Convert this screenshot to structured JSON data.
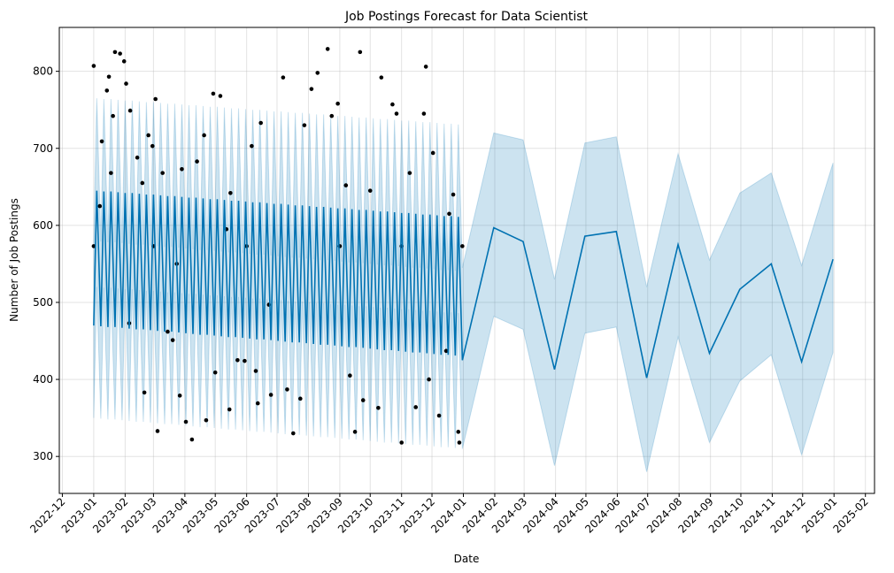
{
  "chart_data": {
    "type": "forecast",
    "title": "Job Postings Forecast for Data Scientist",
    "x_label": "Date",
    "y_label": "Number of Job Postings",
    "grid": true,
    "xlim": [
      "2022-11-28",
      "2025-02-10"
    ],
    "ylim": [
      252,
      857
    ],
    "yticks": [
      300,
      400,
      500,
      600,
      700,
      800
    ],
    "xticks": [
      {
        "value": "2022-12-01",
        "label": "2022-12"
      },
      {
        "value": "2023-01-01",
        "label": "2023-01"
      },
      {
        "value": "2023-02-01",
        "label": "2023-02"
      },
      {
        "value": "2023-03-01",
        "label": "2023-03"
      },
      {
        "value": "2023-04-01",
        "label": "2023-04"
      },
      {
        "value": "2023-05-01",
        "label": "2023-05"
      },
      {
        "value": "2023-06-01",
        "label": "2023-06"
      },
      {
        "value": "2023-07-01",
        "label": "2023-07"
      },
      {
        "value": "2023-08-01",
        "label": "2023-08"
      },
      {
        "value": "2023-09-01",
        "label": "2023-09"
      },
      {
        "value": "2023-10-01",
        "label": "2023-10"
      },
      {
        "value": "2023-11-01",
        "label": "2023-11"
      },
      {
        "value": "2023-12-01",
        "label": "2023-12"
      },
      {
        "value": "2024-01-01",
        "label": "2024-01"
      },
      {
        "value": "2024-02-01",
        "label": "2024-02"
      },
      {
        "value": "2024-03-01",
        "label": "2024-03"
      },
      {
        "value": "2024-04-01",
        "label": "2024-04"
      },
      {
        "value": "2024-05-01",
        "label": "2024-05"
      },
      {
        "value": "2024-06-01",
        "label": "2024-06"
      },
      {
        "value": "2024-07-01",
        "label": "2024-07"
      },
      {
        "value": "2024-08-01",
        "label": "2024-08"
      },
      {
        "value": "2024-09-01",
        "label": "2024-09"
      },
      {
        "value": "2024-10-01",
        "label": "2024-10"
      },
      {
        "value": "2024-11-01",
        "label": "2024-11"
      },
      {
        "value": "2024-12-01",
        "label": "2024-12"
      },
      {
        "value": "2025-01-01",
        "label": "2025-01"
      },
      {
        "value": "2025-02-01",
        "label": "2025-02"
      }
    ],
    "forecast": {
      "color": "#0072B2",
      "x": [
        "2023-01-01",
        "2023-01-04",
        "2023-01-08",
        "2023-01-11",
        "2023-01-15",
        "2023-01-18",
        "2023-01-22",
        "2023-01-25",
        "2023-01-29",
        "2023-02-01",
        "2023-02-05",
        "2023-02-08",
        "2023-02-12",
        "2023-02-15",
        "2023-02-19",
        "2023-02-22",
        "2023-02-26",
        "2023-03-01",
        "2023-03-05",
        "2023-03-08",
        "2023-03-12",
        "2023-03-15",
        "2023-03-19",
        "2023-03-22",
        "2023-03-26",
        "2023-03-29",
        "2023-04-02",
        "2023-04-05",
        "2023-04-09",
        "2023-04-12",
        "2023-04-16",
        "2023-04-19",
        "2023-04-23",
        "2023-04-26",
        "2023-04-30",
        "2023-05-03",
        "2023-05-07",
        "2023-05-10",
        "2023-05-14",
        "2023-05-17",
        "2023-05-21",
        "2023-05-24",
        "2023-05-28",
        "2023-05-31",
        "2023-06-04",
        "2023-06-07",
        "2023-06-11",
        "2023-06-14",
        "2023-06-18",
        "2023-06-21",
        "2023-06-25",
        "2023-06-28",
        "2023-07-02",
        "2023-07-05",
        "2023-07-09",
        "2023-07-12",
        "2023-07-16",
        "2023-07-19",
        "2023-07-23",
        "2023-07-26",
        "2023-07-30",
        "2023-08-02",
        "2023-08-06",
        "2023-08-09",
        "2023-08-13",
        "2023-08-16",
        "2023-08-20",
        "2023-08-23",
        "2023-08-27",
        "2023-08-30",
        "2023-09-03",
        "2023-09-06",
        "2023-09-10",
        "2023-09-13",
        "2023-09-17",
        "2023-09-20",
        "2023-09-24",
        "2023-09-27",
        "2023-10-01",
        "2023-10-04",
        "2023-10-08",
        "2023-10-11",
        "2023-10-15",
        "2023-10-18",
        "2023-10-22",
        "2023-10-25",
        "2023-10-29",
        "2023-11-01",
        "2023-11-05",
        "2023-11-08",
        "2023-11-12",
        "2023-11-15",
        "2023-11-19",
        "2023-11-22",
        "2023-11-26",
        "2023-11-29",
        "2023-12-03",
        "2023-12-06",
        "2023-12-10",
        "2023-12-13",
        "2023-12-17",
        "2023-12-20",
        "2023-12-24",
        "2023-12-27",
        "2023-12-31",
        "2024-01-31",
        "2024-02-29",
        "2024-03-31",
        "2024-04-30",
        "2024-05-31",
        "2024-06-30",
        "2024-07-31",
        "2024-08-31",
        "2024-09-30",
        "2024-10-31",
        "2024-11-30",
        "2024-12-31"
      ],
      "values": [
        470,
        645,
        469,
        644,
        468,
        644,
        468,
        643,
        467,
        642,
        466,
        642,
        465,
        641,
        465,
        640,
        464,
        640,
        463,
        639,
        462,
        638,
        462,
        638,
        461,
        637,
        460,
        636,
        459,
        636,
        458,
        635,
        458,
        634,
        457,
        634,
        456,
        633,
        455,
        632,
        455,
        632,
        454,
        631,
        453,
        630,
        452,
        630,
        452,
        629,
        451,
        628,
        450,
        628,
        449,
        627,
        448,
        626,
        448,
        626,
        447,
        625,
        446,
        624,
        445,
        624,
        445,
        623,
        444,
        622,
        443,
        622,
        442,
        621,
        442,
        620,
        441,
        620,
        440,
        619,
        439,
        618,
        438,
        618,
        438,
        617,
        437,
        616,
        436,
        616,
        435,
        615,
        435,
        614,
        434,
        614,
        433,
        613,
        432,
        612,
        432,
        612,
        431,
        611,
        425,
        597,
        579,
        413,
        586,
        592,
        402,
        575,
        434,
        517,
        550,
        423,
        556
      ],
      "upper": [
        580,
        765,
        579,
        764,
        578,
        764,
        578,
        763,
        577,
        762,
        576,
        762,
        575,
        761,
        575,
        760,
        574,
        760,
        573,
        759,
        572,
        758,
        572,
        758,
        571,
        757,
        570,
        756,
        569,
        756,
        568,
        755,
        568,
        754,
        567,
        754,
        566,
        753,
        565,
        752,
        565,
        752,
        564,
        751,
        563,
        750,
        562,
        750,
        562,
        749,
        561,
        748,
        560,
        748,
        559,
        747,
        558,
        746,
        558,
        746,
        557,
        745,
        556,
        744,
        555,
        744,
        555,
        743,
        554,
        742,
        553,
        742,
        552,
        741,
        552,
        740,
        551,
        740,
        550,
        739,
        549,
        738,
        548,
        738,
        548,
        737,
        547,
        736,
        546,
        736,
        545,
        735,
        545,
        734,
        544,
        734,
        543,
        733,
        542,
        732,
        542,
        732,
        541,
        731,
        545,
        720,
        711,
        530,
        707,
        715,
        520,
        693,
        555,
        642,
        668,
        548,
        681
      ],
      "lower": [
        350,
        520,
        349,
        519,
        348,
        519,
        348,
        518,
        347,
        517,
        346,
        517,
        345,
        516,
        345,
        515,
        344,
        515,
        343,
        514,
        342,
        513,
        342,
        513,
        341,
        512,
        340,
        511,
        339,
        511,
        338,
        510,
        338,
        509,
        337,
        509,
        336,
        508,
        335,
        507,
        335,
        507,
        334,
        506,
        333,
        505,
        332,
        505,
        332,
        504,
        331,
        503,
        330,
        503,
        329,
        502,
        328,
        501,
        328,
        501,
        327,
        500,
        326,
        499,
        325,
        499,
        325,
        498,
        324,
        497,
        323,
        497,
        322,
        496,
        322,
        495,
        321,
        495,
        320,
        494,
        319,
        493,
        318,
        493,
        318,
        492,
        317,
        491,
        316,
        491,
        315,
        490,
        315,
        489,
        314,
        489,
        313,
        488,
        312,
        487,
        312,
        487,
        311,
        486,
        310,
        482,
        465,
        288,
        460,
        468,
        280,
        455,
        318,
        398,
        432,
        302,
        435
      ]
    },
    "observed": {
      "color": "#000000",
      "x": [
        "2023-01-01",
        "2023-01-01",
        "2023-01-07",
        "2023-01-09",
        "2023-01-14",
        "2023-01-16",
        "2023-01-18",
        "2023-01-20",
        "2023-01-22",
        "2023-01-27",
        "2023-01-31",
        "2023-02-02",
        "2023-02-05",
        "2023-02-06",
        "2023-02-13",
        "2023-02-18",
        "2023-02-20",
        "2023-02-24",
        "2023-02-28",
        "2023-03-01",
        "2023-03-03",
        "2023-03-05",
        "2023-03-10",
        "2023-03-15",
        "2023-03-20",
        "2023-03-24",
        "2023-03-27",
        "2023-03-29",
        "2023-04-02",
        "2023-04-08",
        "2023-04-13",
        "2023-04-20",
        "2023-04-22",
        "2023-04-29",
        "2023-05-01",
        "2023-05-06",
        "2023-05-12",
        "2023-05-15",
        "2023-05-16",
        "2023-05-23",
        "2023-05-30",
        "2023-06-01",
        "2023-06-06",
        "2023-06-10",
        "2023-06-12",
        "2023-06-15",
        "2023-06-23",
        "2023-06-25",
        "2023-07-07",
        "2023-07-11",
        "2023-07-17",
        "2023-07-24",
        "2023-07-28",
        "2023-08-04",
        "2023-08-10",
        "2023-08-20",
        "2023-08-24",
        "2023-08-30",
        "2023-09-01",
        "2023-09-07",
        "2023-09-11",
        "2023-09-16",
        "2023-09-21",
        "2023-09-24",
        "2023-10-01",
        "2023-10-09",
        "2023-10-12",
        "2023-10-23",
        "2023-10-27",
        "2023-11-01",
        "2023-11-01",
        "2023-11-09",
        "2023-11-15",
        "2023-11-23",
        "2023-11-25",
        "2023-11-28",
        "2023-12-02",
        "2023-12-08",
        "2023-12-15",
        "2023-12-18",
        "2023-12-22",
        "2023-12-27",
        "2023-12-28",
        "2023-12-31"
      ],
      "values": [
        807,
        573,
        625,
        709,
        775,
        793,
        668,
        742,
        825,
        823,
        813,
        784,
        473,
        749,
        688,
        655,
        383,
        717,
        703,
        573,
        764,
        333,
        668,
        462,
        451,
        550,
        379,
        673,
        345,
        322,
        683,
        717,
        347,
        771,
        409,
        768,
        595,
        361,
        642,
        425,
        424,
        573,
        703,
        411,
        369,
        733,
        497,
        380,
        792,
        387,
        330,
        375,
        730,
        777,
        798,
        829,
        742,
        758,
        573,
        652,
        405,
        332,
        825,
        373,
        645,
        363,
        792,
        757,
        745,
        318,
        573,
        668,
        364,
        745,
        806,
        400,
        694,
        353,
        437,
        615,
        640,
        332,
        318,
        573
      ]
    }
  }
}
